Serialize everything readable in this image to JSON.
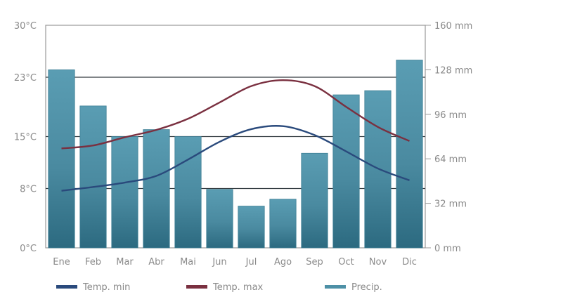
{
  "chart_data": {
    "type": "bar",
    "categories": [
      "Ene",
      "Feb",
      "Mar",
      "Abr",
      "Mai",
      "Jun",
      "Jul",
      "Ago",
      "Sep",
      "Oct",
      "Nov",
      "Dic"
    ],
    "left_axis": {
      "ticks": [
        {
          "value": 0,
          "label": "0°C"
        },
        {
          "value": 8,
          "label": "8°C"
        },
        {
          "value": 15,
          "label": "15°C"
        },
        {
          "value": 23,
          "label": "23°C"
        },
        {
          "value": 30,
          "label": "30°C"
        }
      ],
      "range": [
        0,
        30
      ],
      "unit": "°C"
    },
    "right_axis": {
      "ticks": [
        {
          "value": 0,
          "label": "0 mm"
        },
        {
          "value": 32,
          "label": "32 mm"
        },
        {
          "value": 64,
          "label": "64 mm"
        },
        {
          "value": 96,
          "label": "96 mm"
        },
        {
          "value": 128,
          "label": "128 mm"
        },
        {
          "value": 160,
          "label": "160 mm"
        }
      ],
      "range": [
        0,
        160
      ],
      "unit": "mm"
    },
    "series": [
      {
        "name": "Precip.",
        "kind": "bar",
        "axis": "right",
        "color": "#4d90a6",
        "values": [
          128,
          102,
          80,
          85,
          80,
          42,
          30,
          35,
          68,
          110,
          113,
          135
        ]
      },
      {
        "name": "Temp. min",
        "kind": "line",
        "axis": "left",
        "color": "#2a4a7c",
        "values": [
          7.7,
          8.2,
          8.8,
          9.7,
          11.9,
          14.3,
          16.0,
          16.4,
          15.2,
          13.0,
          10.7,
          9.1
        ]
      },
      {
        "name": "Temp. max",
        "kind": "line",
        "axis": "left",
        "color": "#7a3040",
        "values": [
          13.4,
          13.8,
          14.9,
          15.9,
          17.4,
          19.6,
          21.8,
          22.6,
          21.8,
          19.0,
          16.3,
          14.4
        ]
      }
    ],
    "grid": true,
    "legend": "bottom",
    "legend_entries": [
      {
        "label": "Temp. min",
        "color": "#2a4a7c"
      },
      {
        "label": "Temp. max",
        "color": "#7a3040"
      },
      {
        "label": "Precip.",
        "color": "#4d90a6"
      }
    ]
  }
}
